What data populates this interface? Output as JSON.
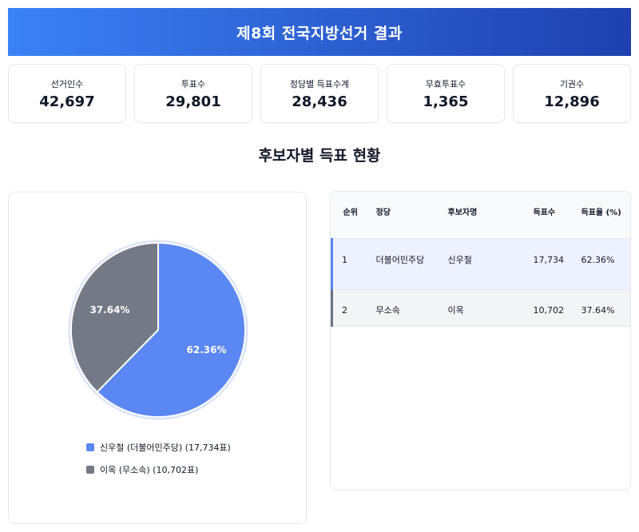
{
  "header": {
    "title": "제8회 전국지방선거 결과"
  },
  "stats": [
    {
      "label": "선거인수",
      "value": "42,697"
    },
    {
      "label": "투표수",
      "value": "29,801"
    },
    {
      "label": "정당별 득표수계",
      "value": "28,436"
    },
    {
      "label": "무효투표수",
      "value": "1,365"
    },
    {
      "label": "기권수",
      "value": "12,896"
    }
  ],
  "section_title": "후보자별 득표 현황",
  "chart_data": {
    "type": "pie",
    "slices": [
      {
        "label": "신우철",
        "party": "더불어민주당",
        "votes": 17734,
        "percent": 62.36,
        "pct_label": "62.36%",
        "color": "#5b87f2"
      },
      {
        "label": "이옥",
        "party": "무소속",
        "votes": 10702,
        "percent": 37.64,
        "pct_label": "37.64%",
        "color": "#737985"
      }
    ],
    "legend": [
      "신우철 (더불어민주당) (17,734표)",
      "이옥 (무소속) (10,702표)"
    ],
    "legend_position": "bottom",
    "ring_color": "#dbe4f8"
  },
  "table": {
    "headers": [
      "순위",
      "정당",
      "후보자명",
      "득표수",
      "득표율 (%)"
    ],
    "rows": [
      {
        "rank": "1",
        "party": "더불어민주당",
        "name": "신우철",
        "votes": "17,734",
        "pct": "62.36%"
      },
      {
        "rank": "2",
        "party": "무소속",
        "name": "이옥",
        "votes": "10,702",
        "pct": "37.64%"
      }
    ]
  }
}
